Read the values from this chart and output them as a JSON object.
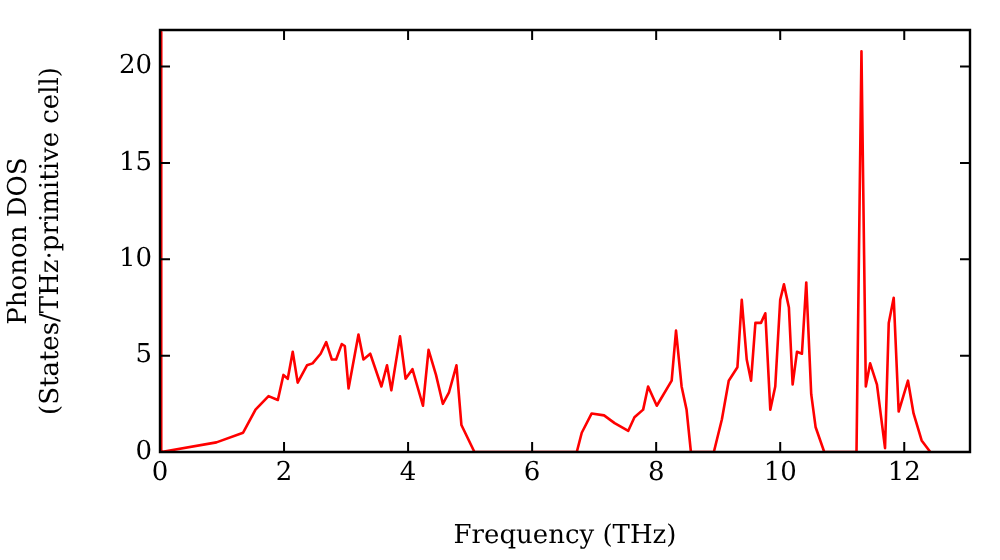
{
  "chart_data": {
    "type": "line",
    "xlabel": "Frequency (THz)",
    "ylabel": "Phonon DOS\n(States/THz·primitive cell)",
    "xlim": [
      0,
      13.06
    ],
    "ylim": [
      0,
      21.9
    ],
    "xticks": [
      0,
      2,
      4,
      6,
      8,
      10,
      12
    ],
    "yticks": [
      0,
      5,
      10,
      15,
      20
    ],
    "grid": false,
    "legend": false,
    "marker": "none",
    "line_style": "solid",
    "series": [
      {
        "color": "#ff0000",
        "x": [
          0,
          0.02,
          0.91,
          1.34,
          1.54,
          1.75,
          1.9,
          1.99,
          2.06,
          2.14,
          2.22,
          2.37,
          2.46,
          2.59,
          2.68,
          2.77,
          2.84,
          2.93,
          2.98,
          3.04,
          3.2,
          3.28,
          3.39,
          3.57,
          3.66,
          3.73,
          3.87,
          3.96,
          4.07,
          4.24,
          4.33,
          4.45,
          4.56,
          4.66,
          4.78,
          4.86,
          5.07,
          6.72,
          6.8,
          6.96,
          7.16,
          7.33,
          7.55,
          7.65,
          7.79,
          7.87,
          8.01,
          8.25,
          8.32,
          8.41,
          8.49,
          8.56,
          8.93,
          9.06,
          9.17,
          9.31,
          9.38,
          9.46,
          9.53,
          9.6,
          9.69,
          9.76,
          9.84,
          9.92,
          10.0,
          10.06,
          10.14,
          10.2,
          10.27,
          10.35,
          10.42,
          10.5,
          10.57,
          10.71,
          11.23,
          11.31,
          11.38,
          11.45,
          11.56,
          11.69,
          11.75,
          11.83,
          11.91,
          12.06,
          12.15,
          12.28,
          12.42
        ],
        "values": [
          21.8,
          0,
          0.5,
          1.0,
          2.2,
          2.9,
          2.7,
          4.0,
          3.8,
          5.2,
          3.6,
          4.5,
          4.6,
          5.1,
          5.7,
          4.8,
          4.8,
          5.6,
          5.5,
          3.3,
          6.1,
          4.8,
          5.1,
          3.4,
          4.5,
          3.2,
          6.0,
          3.8,
          4.3,
          2.4,
          5.3,
          4.0,
          2.5,
          3.1,
          4.5,
          1.4,
          0,
          0,
          1.0,
          2.0,
          1.9,
          1.5,
          1.1,
          1.8,
          2.2,
          3.4,
          2.4,
          3.7,
          6.3,
          3.4,
          2.2,
          0,
          0,
          1.7,
          3.7,
          4.4,
          7.9,
          4.8,
          3.7,
          6.7,
          6.7,
          7.2,
          2.2,
          3.4,
          7.9,
          8.7,
          7.5,
          3.5,
          5.2,
          5.1,
          8.8,
          3.0,
          1.3,
          0,
          0,
          20.8,
          3.4,
          4.6,
          3.5,
          0.2,
          6.7,
          8.0,
          2.1,
          3.7,
          2.0,
          0.6,
          0
        ]
      }
    ]
  }
}
